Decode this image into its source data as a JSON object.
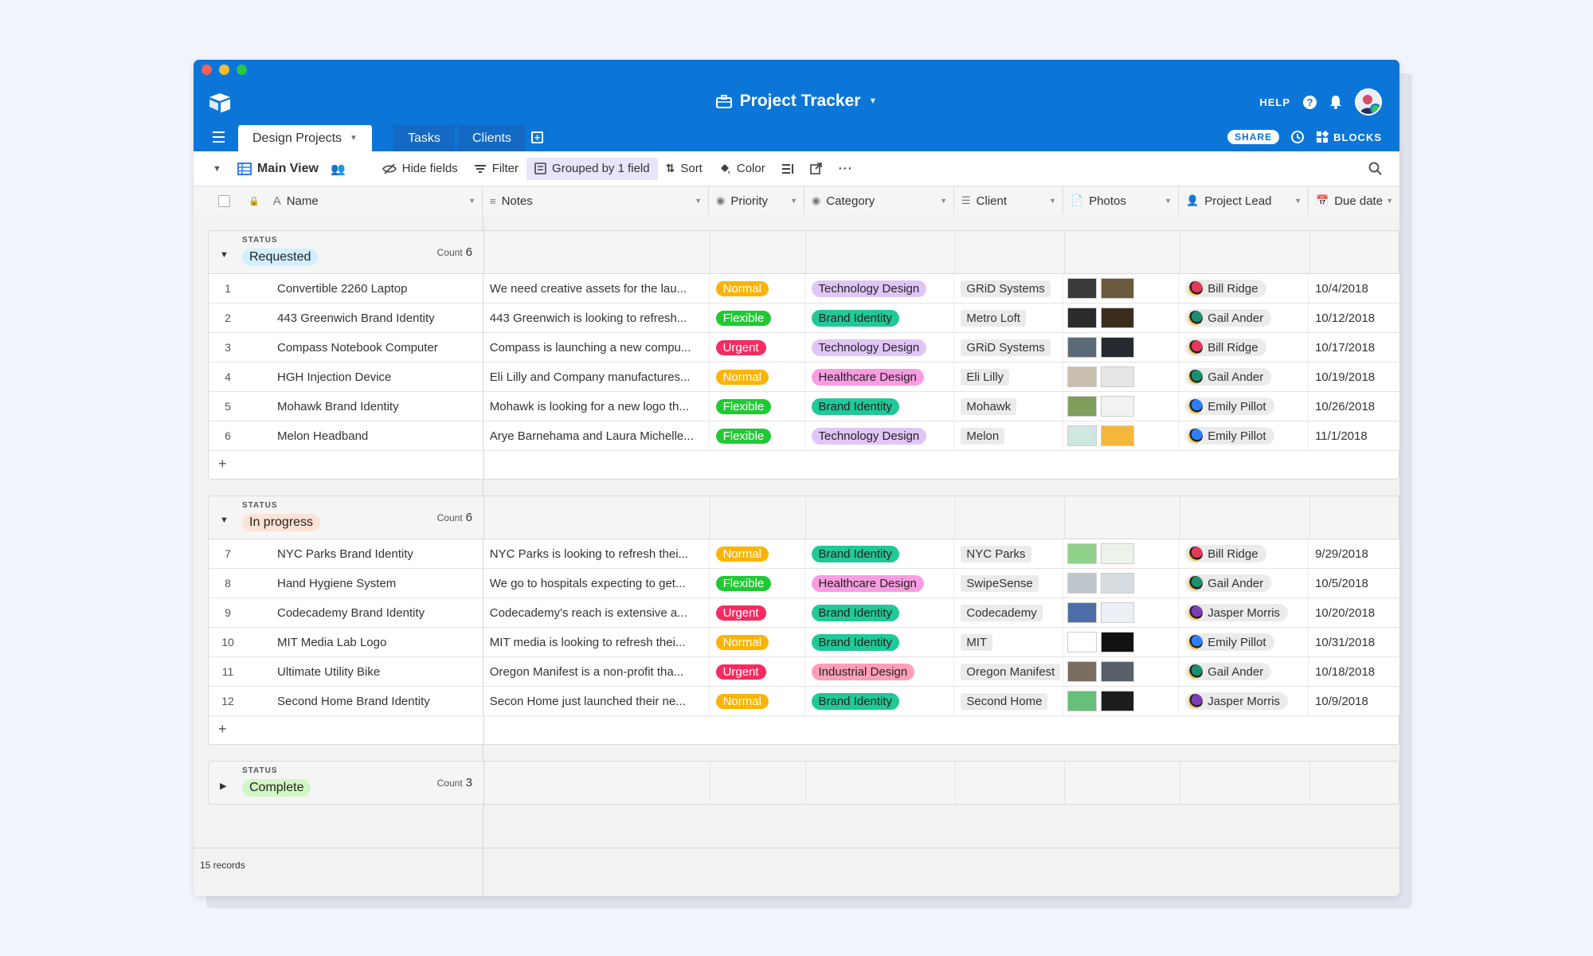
{
  "app": {
    "title": "Project Tracker",
    "help_label": "HELP",
    "share_label": "SHARE",
    "blocks_label": "BLOCKS"
  },
  "tabs": [
    {
      "label": "Design Projects",
      "active": true
    },
    {
      "label": "Tasks",
      "active": false
    },
    {
      "label": "Clients",
      "active": false
    }
  ],
  "toolbar": {
    "view_name": "Main View",
    "hide_fields": "Hide fields",
    "filter": "Filter",
    "grouped": "Grouped by 1 field",
    "sort": "Sort",
    "color": "Color"
  },
  "columns": {
    "name": "Name",
    "notes": "Notes",
    "priority": "Priority",
    "category": "Category",
    "client": "Client",
    "photos": "Photos",
    "lead": "Project Lead",
    "due": "Due date"
  },
  "group_field_label": "STATUS",
  "count_label": "Count",
  "groups": [
    {
      "status": "Requested",
      "count": "6",
      "expanded": true,
      "color": "#d0f0fd",
      "rows": [
        {
          "n": "1",
          "name": "Convertible 2260 Laptop",
          "notes": "We need creative assets for the lau...",
          "priority": "Normal",
          "category": "Technology Design",
          "client": "GRiD Systems",
          "lead": "Bill Ridge",
          "due": "10/4/2018"
        },
        {
          "n": "2",
          "name": "443 Greenwich Brand Identity",
          "notes": "443 Greenwich is looking to refresh...",
          "priority": "Flexible",
          "category": "Brand Identity",
          "client": "Metro Loft",
          "lead": "Gail Ander",
          "due": "10/12/2018"
        },
        {
          "n": "3",
          "name": "Compass Notebook Computer",
          "notes": "Compass is launching a new compu...",
          "priority": "Urgent",
          "category": "Technology Design",
          "client": "GRiD Systems",
          "lead": "Bill Ridge",
          "due": "10/17/2018"
        },
        {
          "n": "4",
          "name": "HGH Injection Device",
          "notes": "Eli Lilly and Company manufactures...",
          "priority": "Normal",
          "category": "Healthcare Design",
          "client": "Eli Lilly",
          "lead": "Gail Ander",
          "due": "10/19/2018"
        },
        {
          "n": "5",
          "name": "Mohawk Brand Identity",
          "notes": "Mohawk is looking for a new logo th...",
          "priority": "Flexible",
          "category": "Brand Identity",
          "client": "Mohawk",
          "lead": "Emily Pillot",
          "due": "10/26/2018"
        },
        {
          "n": "6",
          "name": "Melon Headband",
          "notes": "Arye Barnehama and Laura Michelle...",
          "priority": "Flexible",
          "category": "Technology Design",
          "client": "Melon",
          "lead": "Emily Pillot",
          "due": "11/1/2018"
        }
      ]
    },
    {
      "status": "In progress",
      "count": "6",
      "expanded": true,
      "color": "#fee2d5",
      "rows": [
        {
          "n": "7",
          "name": "NYC Parks Brand Identity",
          "notes": "NYC Parks is looking to refresh thei...",
          "priority": "Normal",
          "category": "Brand Identity",
          "client": "NYC Parks",
          "lead": "Bill Ridge",
          "due": "9/29/2018"
        },
        {
          "n": "8",
          "name": "Hand Hygiene System",
          "notes": "We go to hospitals expecting to get...",
          "priority": "Flexible",
          "category": "Healthcare Design",
          "client": "SwipeSense",
          "lead": "Gail Ander",
          "due": "10/5/2018"
        },
        {
          "n": "9",
          "name": "Codecademy Brand Identity",
          "notes": "Codecademy's reach is extensive a...",
          "priority": "Urgent",
          "category": "Brand Identity",
          "client": "Codecademy",
          "lead": "Jasper Morris",
          "due": "10/20/2018"
        },
        {
          "n": "10",
          "name": "MIT Media Lab Logo",
          "notes": "MIT media is looking to refresh thei...",
          "priority": "Normal",
          "category": "Brand Identity",
          "client": "MIT",
          "lead": "Emily Pillot",
          "due": "10/31/2018"
        },
        {
          "n": "11",
          "name": "Ultimate Utility Bike",
          "notes": "Oregon Manifest is a non-profit tha...",
          "priority": "Urgent",
          "category": "Industrial Design",
          "client": "Oregon Manifest",
          "lead": "Gail Ander",
          "due": "10/18/2018"
        },
        {
          "n": "12",
          "name": "Second Home Brand Identity",
          "notes": "Secon Home just launched their ne...",
          "priority": "Normal",
          "category": "Brand Identity",
          "client": "Second Home",
          "lead": "Jasper Morris",
          "due": "10/9/2018"
        }
      ]
    },
    {
      "status": "Complete",
      "count": "3",
      "expanded": false,
      "color": "#d1f7c4",
      "rows": []
    }
  ],
  "priority_colors": {
    "Normal": "#fcb400",
    "Flexible": "#20c933",
    "Urgent": "#f82b60"
  },
  "category_colors": {
    "Technology Design": "#e0c6f7",
    "Brand Identity": "#20c997",
    "Healthcare Design": "#f99de2",
    "Industrial Design": "#ff9eb7"
  },
  "lead_colors": {
    "Bill Ridge": "#e23b5a",
    "Gail Ander": "#1b8f6e",
    "Emily Pillot": "#2d7ff9",
    "Jasper Morris": "#7b3fb5"
  },
  "footer": {
    "records": "15 records"
  }
}
